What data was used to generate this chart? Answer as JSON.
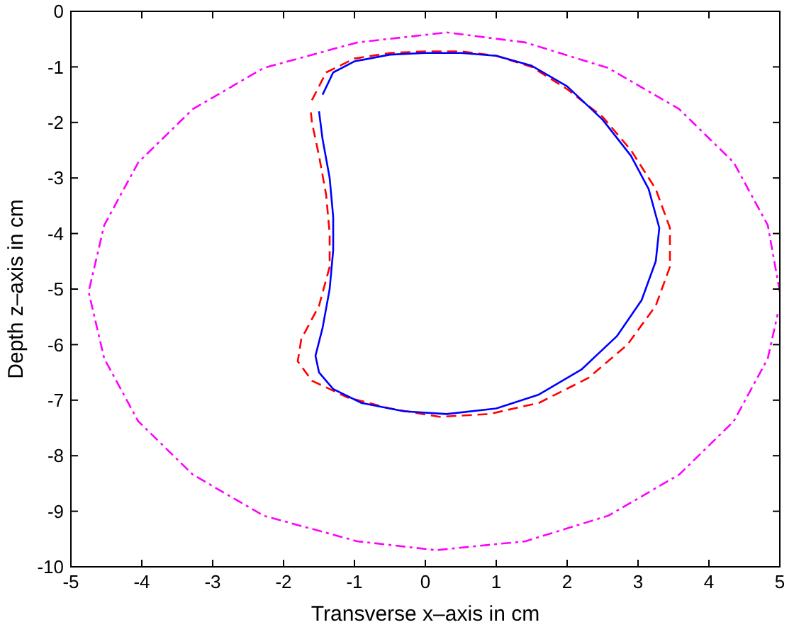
{
  "chart_data": {
    "type": "line",
    "xlabel": "Transverse x–axis in cm",
    "ylabel": "Depth z–axis in cm",
    "xlim": [
      -5,
      5
    ],
    "ylim": [
      -10,
      0
    ],
    "xticks": [
      -5,
      -4,
      -3,
      -2,
      -1,
      0,
      1,
      2,
      3,
      4,
      5
    ],
    "yticks": [
      -10,
      -9,
      -8,
      -7,
      -6,
      -5,
      -4,
      -3,
      -2,
      -1,
      0
    ],
    "grid": false,
    "marker": "none",
    "series": [
      {
        "color": "#ff00ff",
        "line_style": "dashdot",
        "x": [
          5.0,
          4.83,
          4.35,
          3.58,
          2.58,
          1.41,
          0.3,
          -0.96,
          -2.28,
          -3.28,
          -4.05,
          -4.53,
          -4.75,
          -4.53,
          -4.05,
          -3.28,
          -2.28,
          -0.96,
          0.15,
          1.41,
          2.58,
          3.58,
          4.35,
          4.83,
          4.97
        ],
        "values": [
          -5.05,
          -3.85,
          -2.72,
          -1.76,
          -1.02,
          -0.56,
          -0.38,
          -0.56,
          -1.02,
          -1.76,
          -2.72,
          -3.85,
          -5.05,
          -6.25,
          -7.38,
          -8.34,
          -9.08,
          -9.54,
          -9.7,
          -9.54,
          -9.08,
          -8.34,
          -7.38,
          -6.25,
          -5.45
        ]
      },
      {
        "color": "#ff0000",
        "line_style": "dashed",
        "x": [
          -1.6,
          -1.4,
          -1.0,
          -0.5,
          0,
          0.5,
          1.0,
          1.5,
          2.0,
          2.5,
          2.9,
          3.25,
          3.45,
          3.45,
          3.25,
          2.85,
          2.3,
          1.6,
          0.9,
          0.2,
          -0.5,
          -1.1,
          -1.6,
          -1.8,
          -1.75,
          -1.5,
          -1.35,
          -1.35,
          -1.4,
          -1.5,
          -1.6,
          -1.62
        ],
        "values": [
          -1.6,
          -1.1,
          -0.85,
          -0.75,
          -0.72,
          -0.72,
          -0.8,
          -1.0,
          -1.4,
          -1.9,
          -2.5,
          -3.2,
          -3.9,
          -4.6,
          -5.3,
          -6.0,
          -6.6,
          -7.05,
          -7.25,
          -7.3,
          -7.15,
          -6.95,
          -6.65,
          -6.3,
          -5.9,
          -5.3,
          -4.6,
          -4.0,
          -3.3,
          -2.6,
          -2.0,
          -1.75
        ]
      },
      {
        "color": "#0000ff",
        "line_style": "solid",
        "x": [
          -1.45,
          -1.3,
          -1.0,
          -0.5,
          0,
          0.5,
          1.0,
          1.5,
          2.0,
          2.5,
          2.9,
          3.15,
          3.3,
          3.25,
          3.05,
          2.7,
          2.2,
          1.6,
          1.0,
          0.3,
          -0.3,
          -0.9,
          -1.3,
          -1.5,
          -1.55,
          -1.45,
          -1.35,
          -1.3,
          -1.3,
          -1.35,
          -1.45,
          -1.5
        ],
        "values": [
          -1.5,
          -1.1,
          -0.9,
          -0.78,
          -0.75,
          -0.75,
          -0.8,
          -0.98,
          -1.35,
          -1.95,
          -2.6,
          -3.2,
          -3.9,
          -4.5,
          -5.2,
          -5.85,
          -6.45,
          -6.9,
          -7.15,
          -7.25,
          -7.2,
          -7.05,
          -6.8,
          -6.5,
          -6.2,
          -5.7,
          -5.0,
          -4.3,
          -3.7,
          -3.0,
          -2.3,
          -1.8
        ]
      }
    ]
  }
}
